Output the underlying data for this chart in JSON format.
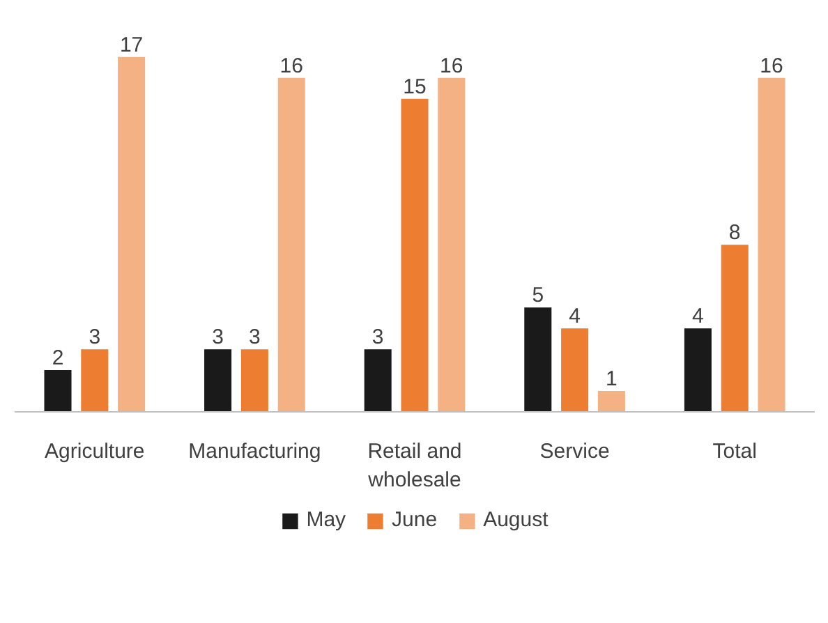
{
  "chart_data": {
    "type": "bar",
    "categories": [
      "Agriculture",
      "Manufacturing",
      "Retail and\nwholesale",
      "Service",
      "Total"
    ],
    "series": [
      {
        "name": "May",
        "color": "#1a1a1a",
        "values": [
          2,
          3,
          3,
          5,
          4
        ]
      },
      {
        "name": "June",
        "color": "#ed7d31",
        "values": [
          3,
          3,
          15,
          4,
          8
        ]
      },
      {
        "name": "August",
        "color": "#f4b183",
        "values": [
          17,
          16,
          16,
          1,
          16
        ]
      }
    ],
    "data_labels": true,
    "legend": "bottom"
  }
}
